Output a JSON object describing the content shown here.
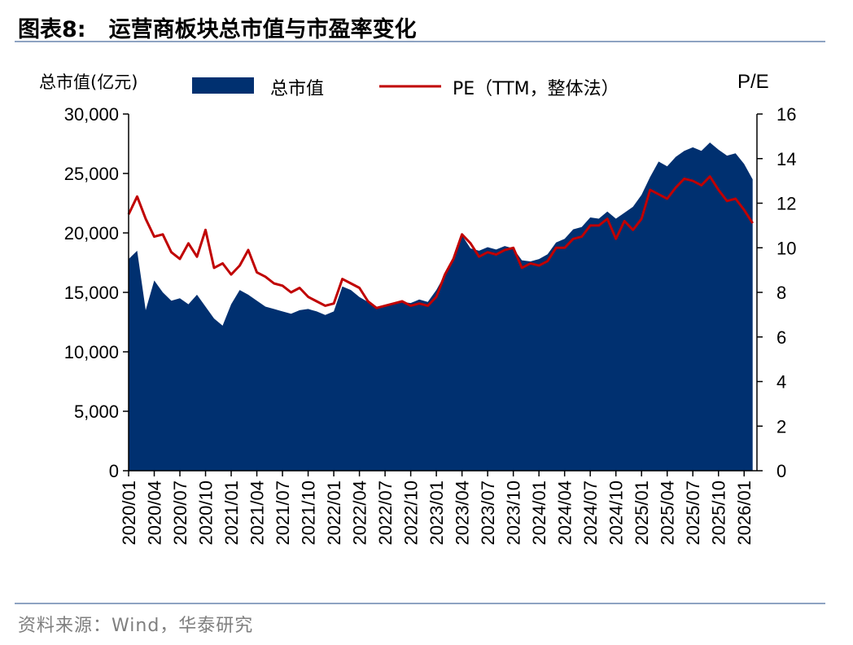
{
  "header": {
    "figure_label": "图表8:",
    "title": "运营商板块总市值与市盈率变化"
  },
  "source": "资料来源：Wind，华泰研究",
  "colors": {
    "market_cap": "#003070",
    "pe": "#c00000",
    "rule": "#8ea3c2"
  },
  "chart_data": {
    "type": "area",
    "secondary_type": "line",
    "x_tick_labels": [
      "2020/01",
      "2020/04",
      "2020/07",
      "2020/10",
      "2021/01",
      "2021/04",
      "2021/07",
      "2021/10",
      "2022/01",
      "2022/04",
      "2022/07",
      "2022/10",
      "2023/01",
      "2023/04",
      "2023/07",
      "2023/10",
      "2024/01",
      "2024/04",
      "2024/07",
      "2024/10",
      "2025/01",
      "2025/04",
      "2025/07",
      "2025/10",
      "2026/01"
    ],
    "x_range": [
      "2020/01",
      "2026/02"
    ],
    "left_axis": {
      "label": "总市值(亿元)",
      "range": [
        0,
        30000
      ],
      "ticks": [
        "0",
        "5,000",
        "10,000",
        "15,000",
        "20,000",
        "25,000",
        "30,000"
      ]
    },
    "right_axis": {
      "label": "P/E",
      "range": [
        0,
        16
      ],
      "ticks": [
        "0",
        "2",
        "4",
        "6",
        "8",
        "10",
        "12",
        "14",
        "16"
      ]
    },
    "legend": {
      "placement": "top",
      "entries": [
        "总市值",
        "PE（TTM，整体法）"
      ]
    },
    "grid": false,
    "series": [
      {
        "name": "总市值",
        "axis": "left",
        "type": "area",
        "x": [
          "2020/01",
          "2020/02",
          "2020/03",
          "2020/04",
          "2020/05",
          "2020/06",
          "2020/07",
          "2020/08",
          "2020/09",
          "2020/10",
          "2020/11",
          "2020/12",
          "2021/01",
          "2021/02",
          "2021/03",
          "2021/04",
          "2021/05",
          "2021/06",
          "2021/07",
          "2021/08",
          "2021/09",
          "2021/10",
          "2021/11",
          "2021/12",
          "2022/01",
          "2022/02",
          "2022/03",
          "2022/04",
          "2022/05",
          "2022/06",
          "2022/07",
          "2022/08",
          "2022/09",
          "2022/10",
          "2022/11",
          "2022/12",
          "2023/01",
          "2023/02",
          "2023/03",
          "2023/04",
          "2023/05",
          "2023/06",
          "2023/07",
          "2023/08",
          "2023/09",
          "2023/10",
          "2023/11",
          "2023/12",
          "2024/01",
          "2024/02",
          "2024/03",
          "2024/04",
          "2024/05",
          "2024/06",
          "2024/07",
          "2024/08",
          "2024/09",
          "2024/10",
          "2024/11",
          "2024/12",
          "2025/01",
          "2025/02",
          "2025/03",
          "2025/04",
          "2025/05",
          "2025/06",
          "2025/07",
          "2025/08",
          "2025/09",
          "2025/10",
          "2025/11",
          "2025/12",
          "2026/01",
          "2026/02"
        ],
        "values": [
          17800,
          18500,
          13500,
          16000,
          15000,
          14300,
          14500,
          14000,
          14800,
          13800,
          12800,
          12200,
          14000,
          15200,
          14800,
          14300,
          13800,
          13600,
          13400,
          13200,
          13500,
          13600,
          13400,
          13100,
          13400,
          15500,
          15200,
          14600,
          14200,
          13700,
          13800,
          14000,
          14200,
          14100,
          14400,
          14200,
          15200,
          16500,
          17800,
          19800,
          18700,
          18500,
          18800,
          18600,
          18900,
          18700,
          17700,
          17600,
          17800,
          18200,
          19200,
          19500,
          20300,
          20500,
          21300,
          21200,
          21800,
          21200,
          21700,
          22200,
          23200,
          24700,
          26000,
          25600,
          26400,
          26900,
          27200,
          26900,
          27600,
          27000,
          26500,
          26700,
          25800,
          24500
        ]
      },
      {
        "name": "PE（TTM，整体法）",
        "axis": "right",
        "type": "line",
        "x": [
          "2020/01",
          "2020/02",
          "2020/03",
          "2020/04",
          "2020/05",
          "2020/06",
          "2020/07",
          "2020/08",
          "2020/09",
          "2020/10",
          "2020/11",
          "2020/12",
          "2021/01",
          "2021/02",
          "2021/03",
          "2021/04",
          "2021/05",
          "2021/06",
          "2021/07",
          "2021/08",
          "2021/09",
          "2021/10",
          "2021/11",
          "2021/12",
          "2022/01",
          "2022/02",
          "2022/03",
          "2022/04",
          "2022/05",
          "2022/06",
          "2022/07",
          "2022/08",
          "2022/09",
          "2022/10",
          "2022/11",
          "2022/12",
          "2023/01",
          "2023/02",
          "2023/03",
          "2023/04",
          "2023/05",
          "2023/06",
          "2023/07",
          "2023/08",
          "2023/09",
          "2023/10",
          "2023/11",
          "2023/12",
          "2024/01",
          "2024/02",
          "2024/03",
          "2024/04",
          "2024/05",
          "2024/06",
          "2024/07",
          "2024/08",
          "2024/09",
          "2024/10",
          "2024/11",
          "2024/12",
          "2025/01",
          "2025/02",
          "2025/03",
          "2025/04",
          "2025/05",
          "2025/06",
          "2025/07",
          "2025/08",
          "2025/09",
          "2025/10",
          "2025/11",
          "2025/12",
          "2026/01",
          "2026/02"
        ],
        "values": [
          11.5,
          12.3,
          11.3,
          10.5,
          10.6,
          9.8,
          9.5,
          10.2,
          9.6,
          10.8,
          9.1,
          9.3,
          8.8,
          9.2,
          9.9,
          8.9,
          8.7,
          8.4,
          8.3,
          8.0,
          8.2,
          7.8,
          7.6,
          7.4,
          7.5,
          8.6,
          8.4,
          8.2,
          7.6,
          7.3,
          7.4,
          7.5,
          7.6,
          7.4,
          7.5,
          7.4,
          7.8,
          8.8,
          9.5,
          10.6,
          10.2,
          9.6,
          9.8,
          9.7,
          9.9,
          10.0,
          9.1,
          9.3,
          9.2,
          9.4,
          10.0,
          10.0,
          10.4,
          10.5,
          11.0,
          11.0,
          11.3,
          10.4,
          11.2,
          10.8,
          11.3,
          12.6,
          12.4,
          12.2,
          12.7,
          13.1,
          13.0,
          12.8,
          13.2,
          12.6,
          12.1,
          12.2,
          11.7,
          11.1
        ]
      }
    ]
  }
}
